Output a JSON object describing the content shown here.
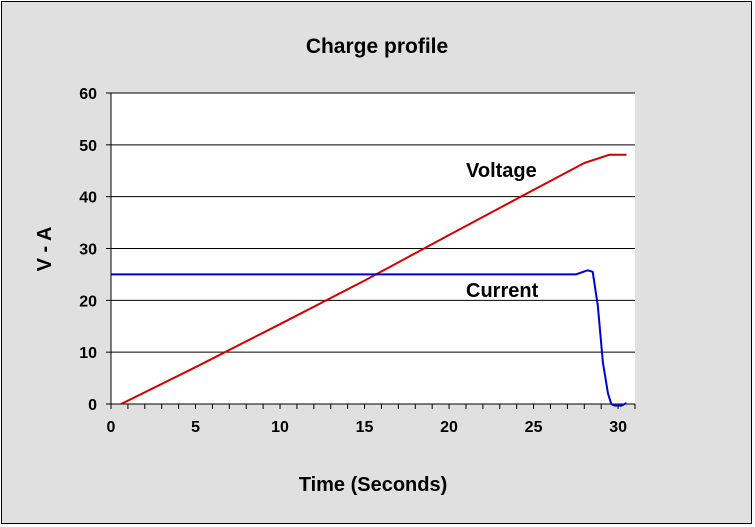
{
  "chart_data": {
    "type": "line",
    "title": "Charge profile",
    "xlabel": "Time (Seconds)",
    "ylabel": "V - A",
    "xlim": [
      0,
      31
    ],
    "ylim": [
      0,
      60
    ],
    "xticks": [
      0,
      5,
      10,
      15,
      20,
      25,
      30
    ],
    "yticks": [
      0,
      10,
      20,
      30,
      40,
      50,
      60
    ],
    "grid": "horizontal",
    "series": [
      {
        "name": "Voltage",
        "color": "#cc0000",
        "x": [
          0.6,
          5,
          10,
          15,
          20,
          25,
          28,
          29.5,
          30.5
        ],
        "y": [
          0,
          7.1,
          15.4,
          23.8,
          32.6,
          41.3,
          46.5,
          48.1,
          48.1
        ]
      },
      {
        "name": "Current",
        "color": "#0000cc",
        "x": [
          0,
          27.5,
          28.2,
          28.5,
          28.8,
          29.1,
          29.4,
          29.6,
          29.8,
          30.2,
          30.5
        ],
        "y": [
          25,
          25,
          25.8,
          25.5,
          19,
          8,
          2,
          0,
          -0.3,
          -0.3,
          0.2
        ]
      }
    ]
  }
}
